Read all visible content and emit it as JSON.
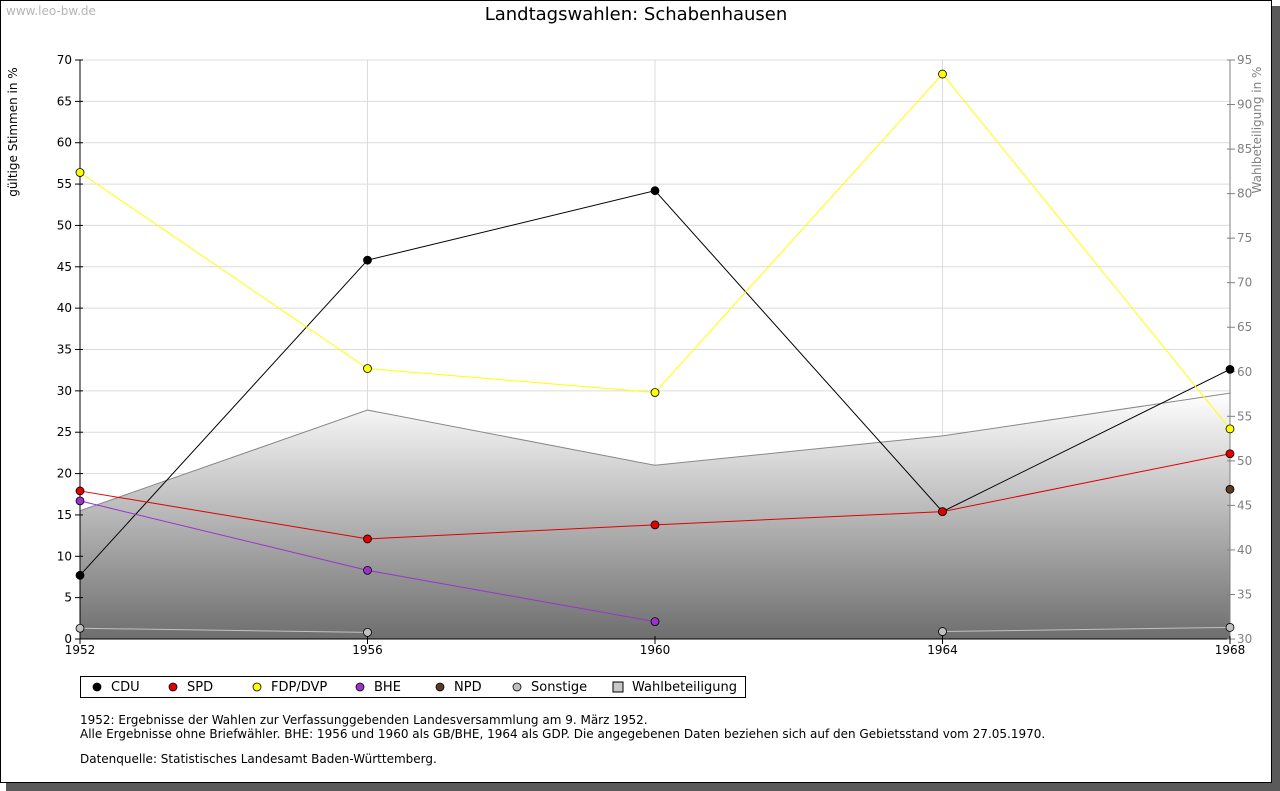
{
  "watermark": "www.leo-bw.de",
  "notes": {
    "line1": "1952: Ergebnisse der Wahlen zur Verfassunggebenden Landesversammlung am 9. März 1952.",
    "line2": "Alle Ergebnisse ohne Briefwähler. BHE: 1956 und 1960 als GB/BHE, 1964 als GDP. Die angegebenen Daten beziehen sich auf den Gebietsstand vom 27.05.1970.",
    "source": "Datenquelle: Statistisches Landesamt Baden-Württemberg."
  },
  "chart_data": {
    "type": "line",
    "title": "Landtagswahlen: Schabenhausen",
    "ylabel": "gültige Stimmen in %",
    "y2label": "Wahlbeteiligung in %",
    "x": [
      1952,
      1956,
      1960,
      1964,
      1968
    ],
    "x_ticks": [
      "1952",
      "1956",
      "1960",
      "1964",
      "1968"
    ],
    "ylim": [
      0,
      70
    ],
    "y_ticks": [
      0,
      5,
      10,
      15,
      20,
      25,
      30,
      35,
      40,
      45,
      50,
      55,
      60,
      65,
      70
    ],
    "y2lim": [
      30,
      95
    ],
    "y2_ticks": [
      30,
      35,
      40,
      45,
      50,
      55,
      60,
      65,
      70,
      75,
      80,
      85,
      90,
      95
    ],
    "grid": true,
    "legend_position": "bottom-left",
    "series": [
      {
        "name": "CDU",
        "color": "#000000",
        "values": [
          7.7,
          45.8,
          54.2,
          15.4,
          32.6
        ]
      },
      {
        "name": "SPD",
        "color": "#e00000",
        "values": [
          17.9,
          12.1,
          13.8,
          15.4,
          22.4
        ]
      },
      {
        "name": "FDP/DVP",
        "color": "#ffff00",
        "values": [
          56.4,
          32.7,
          29.8,
          68.3,
          25.4
        ]
      },
      {
        "name": "BHE",
        "color": "#9933cc",
        "values": [
          16.7,
          8.3,
          2.1,
          null,
          null
        ]
      },
      {
        "name": "NPD",
        "color": "#5a3a22",
        "values": [
          null,
          null,
          null,
          null,
          18.1
        ]
      },
      {
        "name": "Sonstige",
        "color": "#c0c0c0",
        "values": [
          1.3,
          0.8,
          null,
          0.9,
          1.4
        ]
      }
    ],
    "area_series": {
      "name": "Wahlbeteiligung",
      "axis": "right",
      "color": "#888888",
      "values": [
        44.4,
        55.7,
        49.5,
        52.8,
        57.6
      ]
    }
  }
}
